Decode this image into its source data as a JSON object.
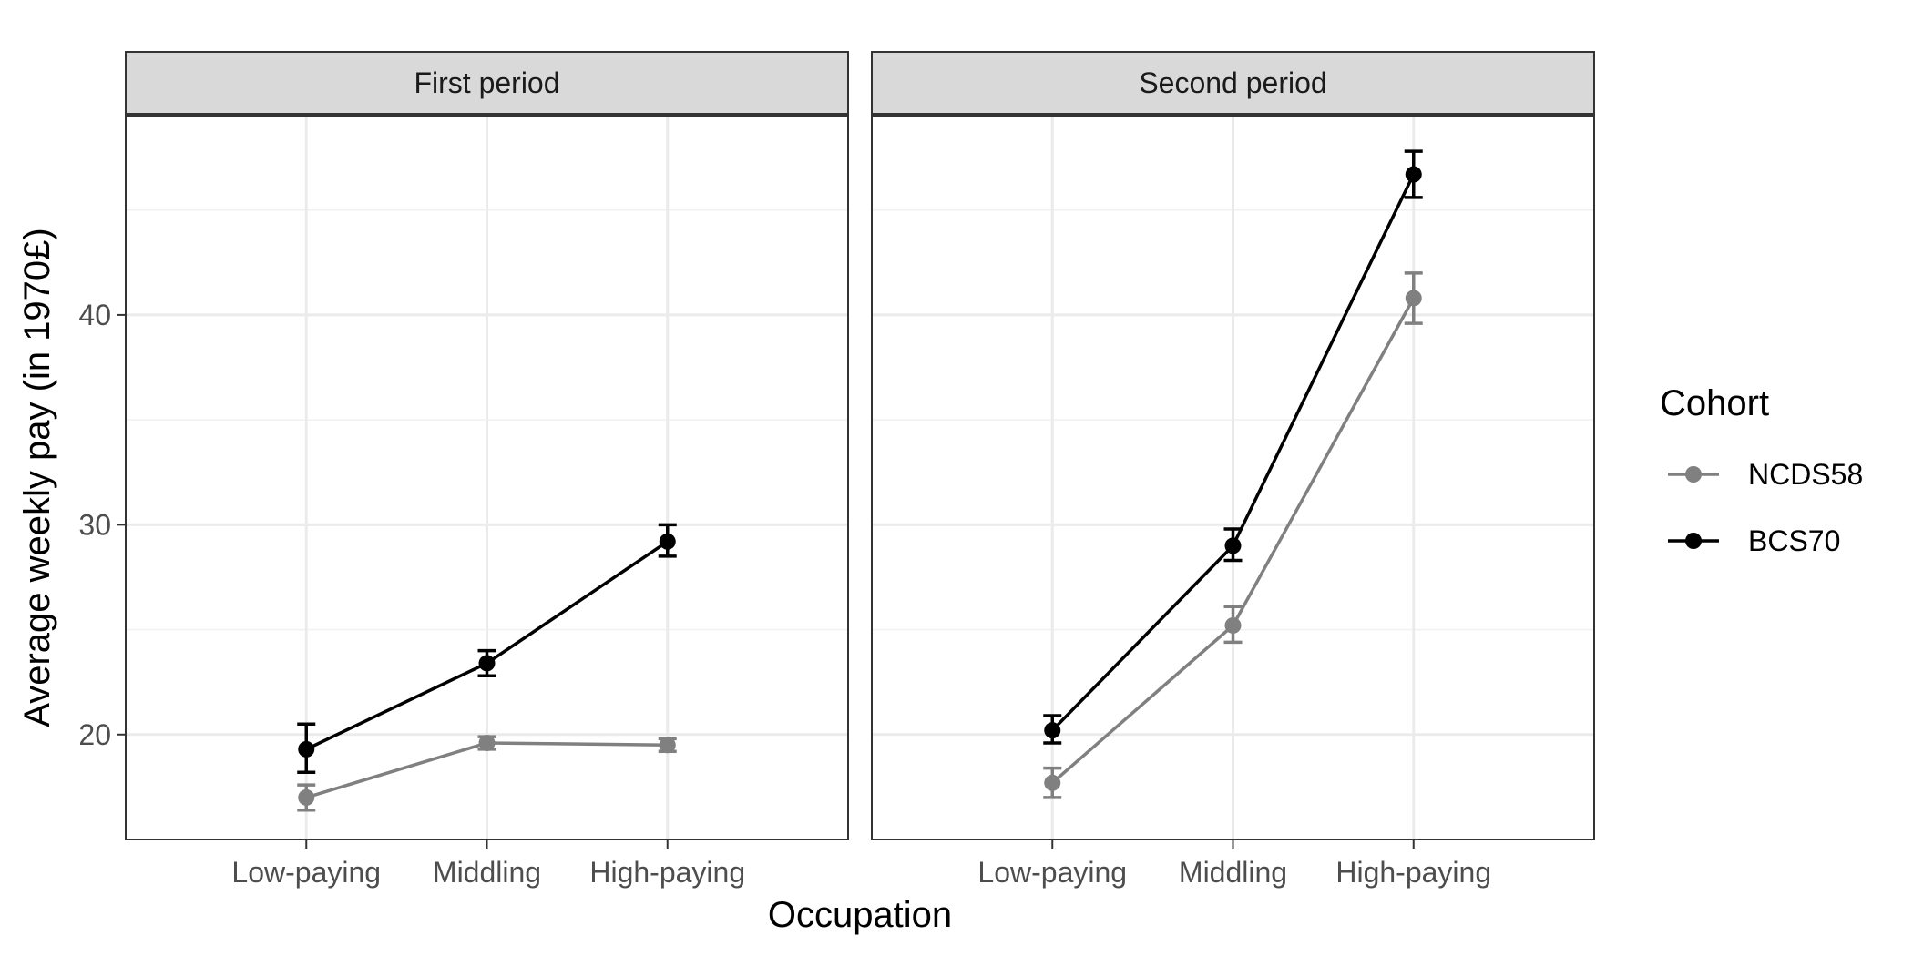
{
  "chart_data": {
    "type": "line",
    "facets": [
      "First period",
      "Second period"
    ],
    "categories": [
      "Low-paying",
      "Middling",
      "High-paying"
    ],
    "xlabel": "Occupation",
    "ylabel": "Average weekly pay (in 1970£)",
    "ylim": [
      15,
      49.5
    ],
    "yticks": [
      20,
      30,
      40
    ],
    "grid": true,
    "legend": {
      "title": "Cohort",
      "position": "right"
    },
    "series": [
      {
        "name": "NCDS58",
        "color": "#808080",
        "panels": [
          {
            "values": [
              17.0,
              19.6,
              19.5
            ],
            "lower": [
              16.4,
              19.3,
              19.2
            ],
            "upper": [
              17.6,
              19.9,
              19.8
            ]
          },
          {
            "values": [
              17.7,
              25.2,
              40.8
            ],
            "lower": [
              17.0,
              24.4,
              39.6
            ],
            "upper": [
              18.4,
              26.1,
              42.0
            ]
          }
        ]
      },
      {
        "name": "BCS70",
        "color": "#000000",
        "panels": [
          {
            "values": [
              19.3,
              23.4,
              29.2
            ],
            "lower": [
              18.2,
              22.8,
              28.5
            ],
            "upper": [
              20.5,
              24.0,
              30.0
            ]
          },
          {
            "values": [
              20.2,
              29.0,
              46.7
            ],
            "lower": [
              19.6,
              28.3,
              45.6
            ],
            "upper": [
              20.9,
              29.8,
              47.8
            ]
          }
        ]
      }
    ]
  }
}
